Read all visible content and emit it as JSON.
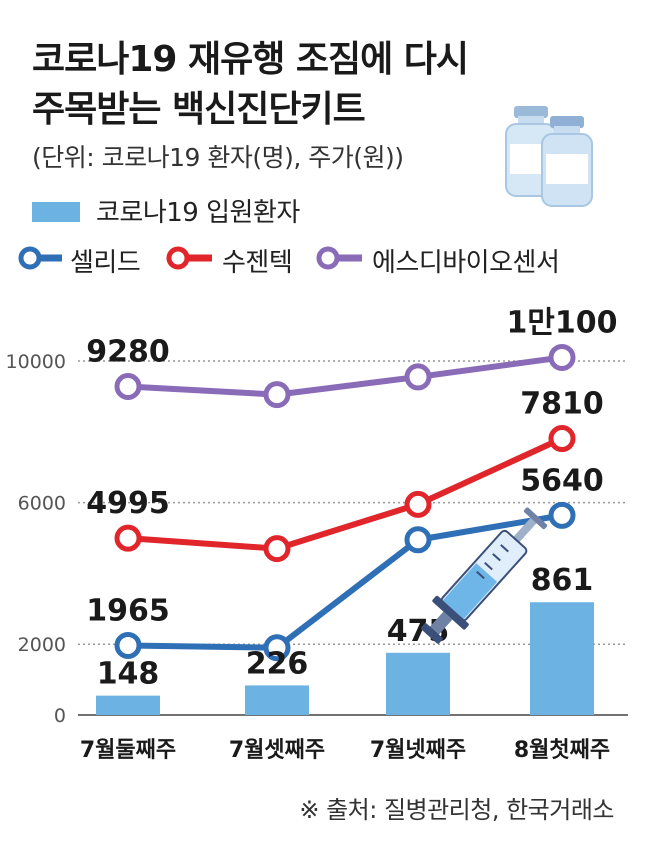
{
  "title_line1": "코로나19 재유행 조짐에 다시",
  "title_line2": "주목받는 백신진단키트",
  "unit_note": "(단위: 코로나19 환자(명), 주가(원))",
  "source": "※ 출처: 질병관리청, 한국거래소",
  "legend": {
    "bar_label": "코로나19 입원환자",
    "line_labels": [
      "셀리드",
      "수젠텍",
      "에스디바이오센서"
    ]
  },
  "colors": {
    "bar": "#6cb3e3",
    "celid": "#2f6fb6",
    "sugentech": "#e0262b",
    "sdbio": "#8a6bb8",
    "gridline": "#999999"
  },
  "icons": [
    "vaccine-vials-icon",
    "syringe-icon"
  ],
  "chart_data": {
    "type": "bar+line",
    "categories": [
      "7월둘째주",
      "7월셋째주",
      "7월넷째주",
      "8월첫째주"
    ],
    "bars": {
      "name": "코로나19 입원환자",
      "values": [
        148,
        226,
        475,
        861
      ],
      "labels": [
        "148",
        "226",
        "475",
        "861"
      ]
    },
    "series": [
      {
        "name": "에스디바이오센서",
        "color": "#8a6bb8",
        "values": [
          9280,
          9050,
          9550,
          10100
        ],
        "labels": [
          "9280",
          "",
          "",
          "1만100"
        ]
      },
      {
        "name": "수젠텍",
        "color": "#e0262b",
        "values": [
          4995,
          4700,
          5950,
          7810
        ],
        "labels": [
          "4995",
          "",
          "",
          "7810"
        ]
      },
      {
        "name": "셀리드",
        "color": "#2f6fb6",
        "values": [
          1965,
          1900,
          4950,
          5640
        ],
        "labels": [
          "1965",
          "",
          "",
          "5640"
        ]
      }
    ],
    "y_ticks": [
      0,
      2000,
      6000,
      10000
    ],
    "ylim": [
      0,
      10700
    ],
    "grid": "dotted horizontal"
  }
}
